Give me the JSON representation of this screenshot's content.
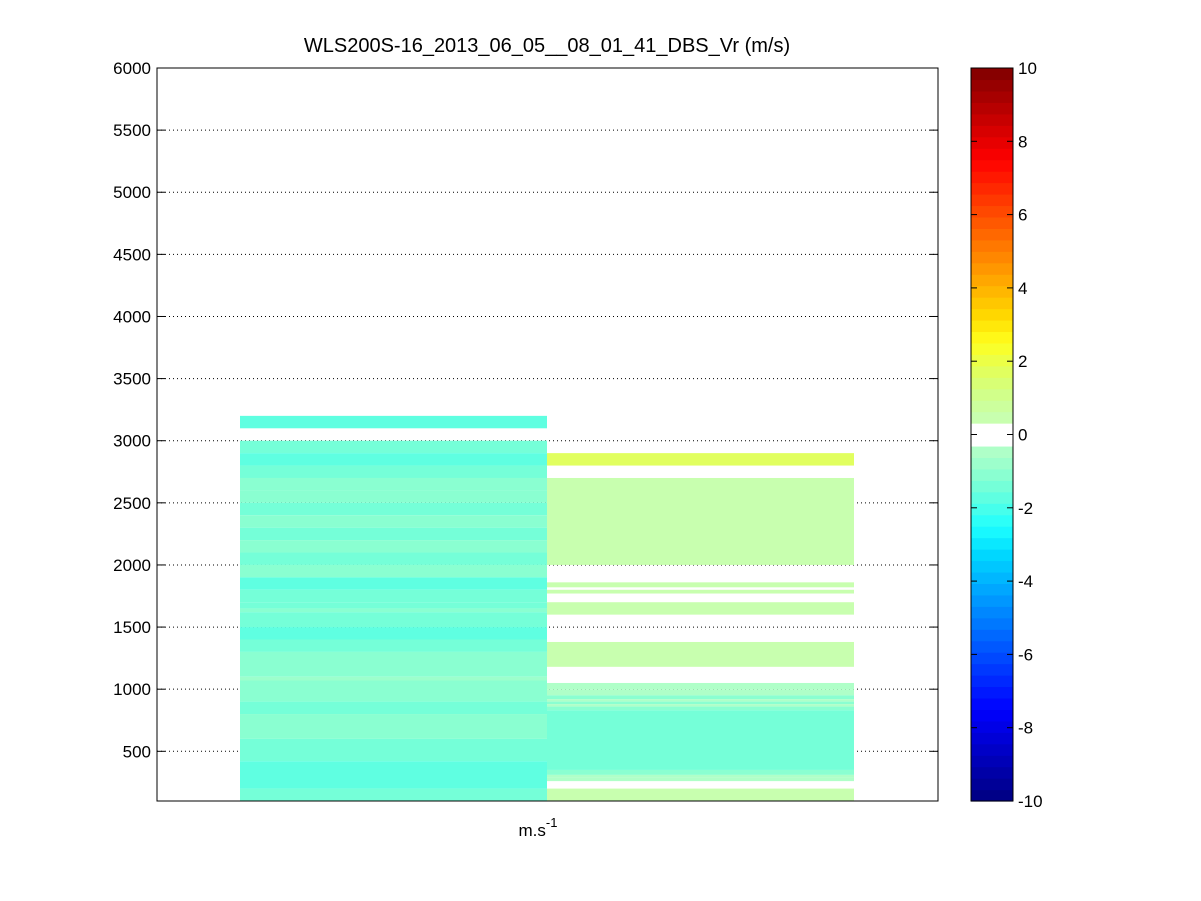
{
  "chart_data": {
    "type": "heatmap",
    "title": "WLS200S-16_2013_06_05__08_01_41_DBS_Vr (m/s)",
    "xlabel": "m.s",
    "xlabel_superscript": "-1",
    "ylim": [
      100,
      6000
    ],
    "yticks": [
      500,
      1000,
      1500,
      2000,
      2500,
      3000,
      3500,
      4000,
      4500,
      5000,
      5500,
      6000
    ],
    "grid": true,
    "colorbar": {
      "range": [
        -10,
        10
      ],
      "ticks": [
        -10,
        -8,
        -6,
        -4,
        -2,
        0,
        2,
        4,
        6,
        8,
        10
      ],
      "levels": 64,
      "white_band": [
        -0.3125,
        0.3125
      ]
    },
    "columns": [
      {
        "name": "",
        "segments": [
          {
            "y0": 3100,
            "y1": 3200,
            "v": -1.6
          },
          {
            "y0": 2900,
            "y1": 3000,
            "v": -1.3
          },
          {
            "y0": 2800,
            "y1": 2900,
            "v": -1.6
          },
          {
            "y0": 2700,
            "y1": 2800,
            "v": -1.3
          },
          {
            "y0": 2600,
            "y1": 2700,
            "v": -1.0
          },
          {
            "y0": 2500,
            "y1": 2600,
            "v": -1.1
          },
          {
            "y0": 2400,
            "y1": 2500,
            "v": -1.3
          },
          {
            "y0": 2300,
            "y1": 2400,
            "v": -1.1
          },
          {
            "y0": 2200,
            "y1": 2300,
            "v": -1.3
          },
          {
            "y0": 2100,
            "y1": 2200,
            "v": -1.1
          },
          {
            "y0": 2000,
            "y1": 2100,
            "v": -1.3
          },
          {
            "y0": 1900,
            "y1": 2000,
            "v": -1.1
          },
          {
            "y0": 1800,
            "y1": 1900,
            "v": -1.6
          },
          {
            "y0": 1700,
            "y1": 1800,
            "v": -1.3
          },
          {
            "y0": 1650,
            "y1": 1700,
            "v": -1.5
          },
          {
            "y0": 1620,
            "y1": 1650,
            "v": -1.0
          },
          {
            "y0": 1500,
            "y1": 1620,
            "v": -1.5
          },
          {
            "y0": 1400,
            "y1": 1500,
            "v": -1.6
          },
          {
            "y0": 1300,
            "y1": 1400,
            "v": -1.3
          },
          {
            "y0": 1100,
            "y1": 1300,
            "v": -1.1
          },
          {
            "y0": 1070,
            "y1": 1100,
            "v": -0.8
          },
          {
            "y0": 900,
            "y1": 1070,
            "v": -1.1
          },
          {
            "y0": 800,
            "y1": 900,
            "v": -1.3
          },
          {
            "y0": 600,
            "y1": 800,
            "v": -1.1
          },
          {
            "y0": 420,
            "y1": 600,
            "v": -1.3
          },
          {
            "y0": 200,
            "y1": 420,
            "v": -1.6
          },
          {
            "y0": 100,
            "y1": 200,
            "v": -1.3
          }
        ]
      },
      {
        "name": "",
        "segments": [
          {
            "y0": 2800,
            "y1": 2900,
            "v": 1.6
          },
          {
            "y0": 2000,
            "y1": 2700,
            "v": 0.6
          },
          {
            "y0": 1820,
            "y1": 1860,
            "v": 0.6
          },
          {
            "y0": 1770,
            "y1": 1800,
            "v": 0.6
          },
          {
            "y0": 1600,
            "y1": 1700,
            "v": 0.6
          },
          {
            "y0": 1180,
            "y1": 1380,
            "v": 0.6
          },
          {
            "y0": 1000,
            "y1": 1050,
            "v": -0.4
          },
          {
            "y0": 950,
            "y1": 1000,
            "v": -0.6
          },
          {
            "y0": 920,
            "y1": 950,
            "v": -1.0
          },
          {
            "y0": 900,
            "y1": 920,
            "v": -0.6
          },
          {
            "y0": 880,
            "y1": 900,
            "v": -1.0
          },
          {
            "y0": 860,
            "y1": 880,
            "v": -0.6
          },
          {
            "y0": 830,
            "y1": 860,
            "v": -1.1
          },
          {
            "y0": 350,
            "y1": 830,
            "v": -1.3
          },
          {
            "y0": 310,
            "y1": 350,
            "v": -1.0
          },
          {
            "y0": 290,
            "y1": 310,
            "v": -0.6
          },
          {
            "y0": 260,
            "y1": 290,
            "v": -0.4
          },
          {
            "y0": 100,
            "y1": 200,
            "v": 0.6
          }
        ]
      }
    ]
  }
}
